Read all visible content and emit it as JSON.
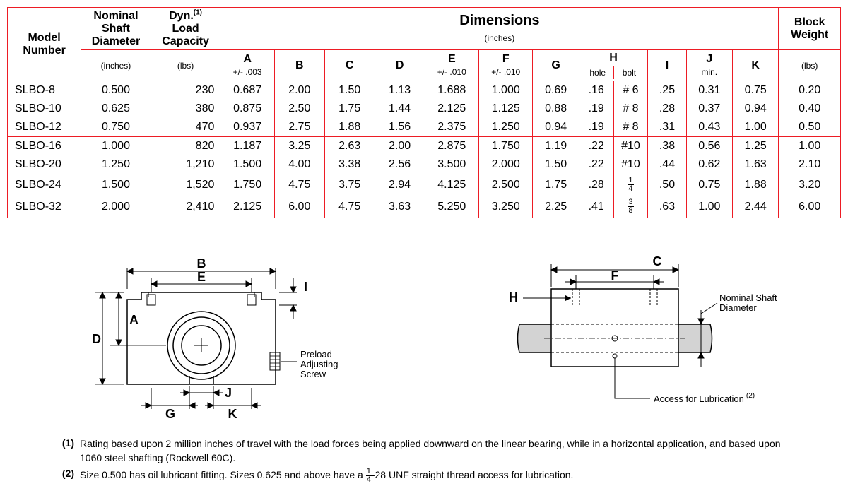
{
  "table": {
    "header": {
      "model": "Model\nNumber",
      "shaft": "Nominal\nShaft\nDiameter",
      "shaft_sub": "(inches)",
      "load": "Dyn.",
      "load_sup": "(1)",
      "load2": "Load\nCapacity",
      "load_sub": "(lbs)",
      "dims": "Dimensions",
      "dims_sub": "(inches)",
      "weight": "Block\nWeight",
      "weight_sub": "(lbs)",
      "cols": {
        "A": "A",
        "A_sub": "+/- .003",
        "B": "B",
        "C": "C",
        "D": "D",
        "E": "E",
        "E_sub": "+/- .010",
        "F": "F",
        "F_sub": "+/- .010",
        "G": "G",
        "H": "H",
        "H_hole": "hole",
        "H_bolt": "bolt",
        "I": "I",
        "J": "J",
        "J_sub": "min.",
        "K": "K"
      }
    },
    "rows": [
      {
        "m": "SLBO-8",
        "s": "0.500",
        "l": "230",
        "A": "0.687",
        "B": "2.00",
        "C": "1.50",
        "D": "1.13",
        "E": "1.688",
        "F": "1.000",
        "G": "0.69",
        "Hh": ".16",
        "Hb": "# 6",
        "I": ".25",
        "J": "0.31",
        "K": "0.75",
        "W": "0.20",
        "div": false
      },
      {
        "m": "SLBO-10",
        "s": "0.625",
        "l": "380",
        "A": "0.875",
        "B": "2.50",
        "C": "1.75",
        "D": "1.44",
        "E": "2.125",
        "F": "1.125",
        "G": "0.88",
        "Hh": ".19",
        "Hb": "# 8",
        "I": ".28",
        "J": "0.37",
        "K": "0.94",
        "W": "0.40",
        "div": false
      },
      {
        "m": "SLBO-12",
        "s": "0.750",
        "l": "470",
        "A": "0.937",
        "B": "2.75",
        "C": "1.88",
        "D": "1.56",
        "E": "2.375",
        "F": "1.250",
        "G": "0.94",
        "Hh": ".19",
        "Hb": "# 8",
        "I": ".31",
        "J": "0.43",
        "K": "1.00",
        "W": "0.50",
        "div": false
      },
      {
        "m": "SLBO-16",
        "s": "1.000",
        "l": "820",
        "A": "1.187",
        "B": "3.25",
        "C": "2.63",
        "D": "2.00",
        "E": "2.875",
        "F": "1.750",
        "G": "1.19",
        "Hh": ".22",
        "Hb": "#10",
        "I": ".38",
        "J": "0.56",
        "K": "1.25",
        "W": "1.00",
        "div": true
      },
      {
        "m": "SLBO-20",
        "s": "1.250",
        "l": "1,210",
        "A": "1.500",
        "B": "4.00",
        "C": "3.38",
        "D": "2.56",
        "E": "3.500",
        "F": "2.000",
        "G": "1.50",
        "Hh": ".22",
        "Hb": "#10",
        "I": ".44",
        "J": "0.62",
        "K": "1.63",
        "W": "2.10",
        "div": false
      },
      {
        "m": "SLBO-24",
        "s": "1.500",
        "l": "1,520",
        "A": "1.750",
        "B": "4.75",
        "C": "3.75",
        "D": "2.94",
        "E": "4.125",
        "F": "2.500",
        "G": "1.75",
        "Hh": ".28",
        "Hb": "¼",
        "I": ".50",
        "J": "0.75",
        "K": "1.88",
        "W": "3.20",
        "div": false,
        "frac1": true,
        "fn": "1",
        "fd": "4"
      },
      {
        "m": "SLBO-32",
        "s": "2.000",
        "l": "2,410",
        "A": "2.125",
        "B": "6.00",
        "C": "4.75",
        "D": "3.63",
        "E": "5.250",
        "F": "3.250",
        "G": "2.25",
        "Hh": ".41",
        "Hb": "⅜",
        "I": ".63",
        "J": "1.00",
        "K": "2.44",
        "W": "6.00",
        "div": false,
        "frac1": true,
        "fn": "3",
        "fd": "8"
      }
    ]
  },
  "diagram": {
    "labels": {
      "A": "A",
      "B": "B",
      "C": "C",
      "D": "D",
      "E": "E",
      "F": "F",
      "G": "G",
      "H": "H",
      "I": "I",
      "J": "J",
      "K": "K"
    },
    "preload": "Preload\nAdjusting\nScrew",
    "nominal": "Nominal Shaft\nDiameter",
    "lube": "Access for Lubrication",
    "lube_sup": "(2)"
  },
  "notes": {
    "n1_num": "(1)",
    "n1": "Rating based upon 2 million inches of travel with the load forces being applied downward on the linear bearing, while in a horizontal application, and based upon 1060 steel shafting (Rockwell 60C).",
    "n2_num": "(2)",
    "n2a": "Size 0.500 has oil lubricant fitting. Sizes 0.625 and above have a ",
    "n2b": "-28 UNF straight thread access for lubrication.",
    "fn": "1",
    "fd": "4"
  },
  "colors": {
    "border": "#ed1c24",
    "diag_fill": "#d3d3d3",
    "diag_stroke": "#000"
  }
}
